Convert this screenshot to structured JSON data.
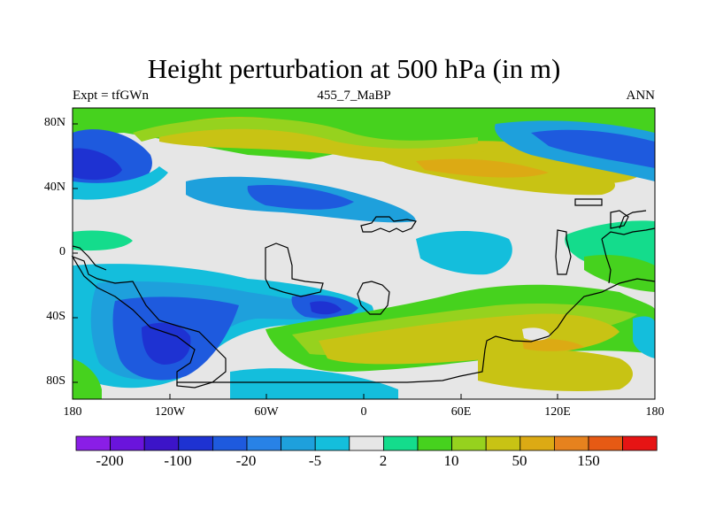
{
  "title": "Height perturbation at 500 hPa (in m)",
  "subtitle_left": "Expt = tfGWn",
  "subtitle_center": "455_7_MaBP",
  "subtitle_right": "ANN",
  "x_ticks": [
    "180",
    "120W",
    "60W",
    "0",
    "60E",
    "120E",
    "180"
  ],
  "y_ticks": [
    "80N",
    "40N",
    "0",
    "40S",
    "80S"
  ],
  "colorbar": {
    "colors": [
      "#8a1ee6",
      "#6a14dc",
      "#3c14c8",
      "#1e32d2",
      "#1e5ade",
      "#2882e6",
      "#1ea0dc",
      "#14bedc",
      "#e6e6e6",
      "#14dc8c",
      "#46d21e",
      "#96d21e",
      "#c8c314",
      "#dcaa14",
      "#e6821e",
      "#e65a14",
      "#e61414"
    ],
    "labels": [
      "-200",
      "-100",
      "-20",
      "-5",
      "2",
      "10",
      "50",
      "150"
    ]
  },
  "chart_data": {
    "type": "heatmap",
    "title": "Height perturbation at 500 hPa (in m)",
    "variable": "500 hPa geopotential height perturbation",
    "units": "m",
    "x_range": [
      -180,
      180
    ],
    "y_range": [
      -90,
      90
    ],
    "levels": [
      "<-200",
      "-200",
      "-100",
      "-20",
      "-5",
      "2",
      "10",
      "50",
      "150",
      ">150"
    ],
    "features": [
      {
        "region": "northern high latitudes Pacific/America",
        "sign": "positive",
        "approx_max": 50
      },
      {
        "region": "northern mid-latitude Atlantic/Eurasia band",
        "sign": "positive",
        "approx_max": 50
      },
      {
        "region": "north Pacific 180-120W near 40-60N",
        "sign": "negative",
        "approx_min": -20
      },
      {
        "region": "north Atlantic 80W-30W near 40N",
        "sign": "negative",
        "approx_min": -20
      },
      {
        "region": "South Pacific 130W-100W near 60S",
        "sign": "negative",
        "approx_min": -100
      },
      {
        "region": "southern mid-latitudes 30W-130E near 50-70S",
        "sign": "positive",
        "approx_max": 50
      },
      {
        "region": "tropics",
        "sign": "near zero",
        "approx": 0
      }
    ]
  }
}
